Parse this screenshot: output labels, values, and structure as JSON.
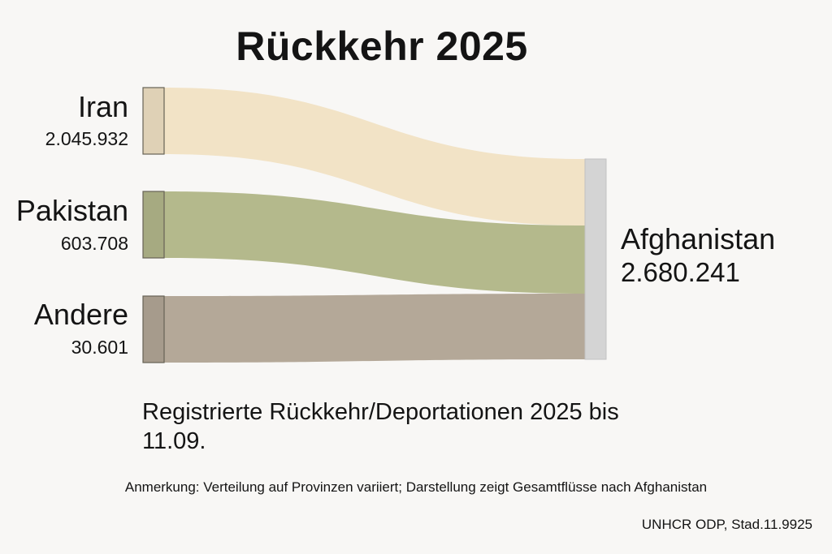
{
  "chart_data": {
    "type": "sankey",
    "title": "Rückkehr 2025",
    "sources": [
      {
        "name": "Iran",
        "value_label": "2.045.932",
        "value": 2045932,
        "color": "#f2e3c6"
      },
      {
        "name": "Pakistan",
        "value_label": "603.708",
        "value": 603708,
        "color": "#b4b98c"
      },
      {
        "name": "Andere",
        "value_label": "30.601",
        "value": 30601,
        "color": "#b4a898"
      }
    ],
    "target": {
      "name": "Afghanistan",
      "value_label": "2.680.241",
      "value": 2680241,
      "color": "#d4d4d4"
    },
    "subtitle": "Registrierte Rückkehr/Deportationen 2025 bis 11.09.",
    "note": "Anmerkung: Verteilung auf Provinzen variiert; Darstellung zeigt Gesamtflüsse nach Afghanistan",
    "source": "UNHCR ODP, Stad.11.9925"
  }
}
